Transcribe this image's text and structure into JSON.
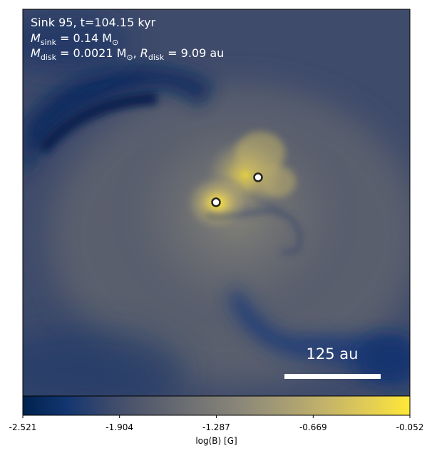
{
  "header": {
    "line1": "Sink 95, t=104.15 kyr",
    "line2_symbol": "M",
    "line2_sub": "sink",
    "line2_rest": " = 0.14 M",
    "line2_sun": "⊙",
    "line3_symbol": "M",
    "line3_sub": "disk",
    "line3_mid": " = 0.0021 M",
    "line3_sun": "⊙",
    "line3_sep": ", ",
    "line3_r_symbol": "R",
    "line3_r_sub": "disk",
    "line3_r_rest": " = 9.09 au"
  },
  "scale_bar": {
    "label": "125 au"
  },
  "sinks": [
    {
      "name": "sink-left"
    },
    {
      "name": "sink-right"
    }
  ],
  "colorbar": {
    "label": "log(B) [G]",
    "ticks": [
      "-2.521",
      "-1.904",
      "-1.287",
      "-0.669",
      "-0.052"
    ],
    "tick_values": [
      -2.521,
      -1.904,
      -1.287,
      -0.669,
      -0.052
    ],
    "range": [
      -2.521,
      -0.052
    ],
    "colormap": "cividis",
    "colors": [
      "#00224e",
      "#123570",
      "#3b496c",
      "#575d6d",
      "#707173",
      "#8a8779",
      "#a59c74",
      "#c3b369",
      "#e1cc55",
      "#fee838"
    ]
  },
  "colors": {
    "text": "#ffffff",
    "scale_bar": "#ffffff",
    "sink_fill": "#ffffff",
    "sink_edge": "#222222"
  }
}
